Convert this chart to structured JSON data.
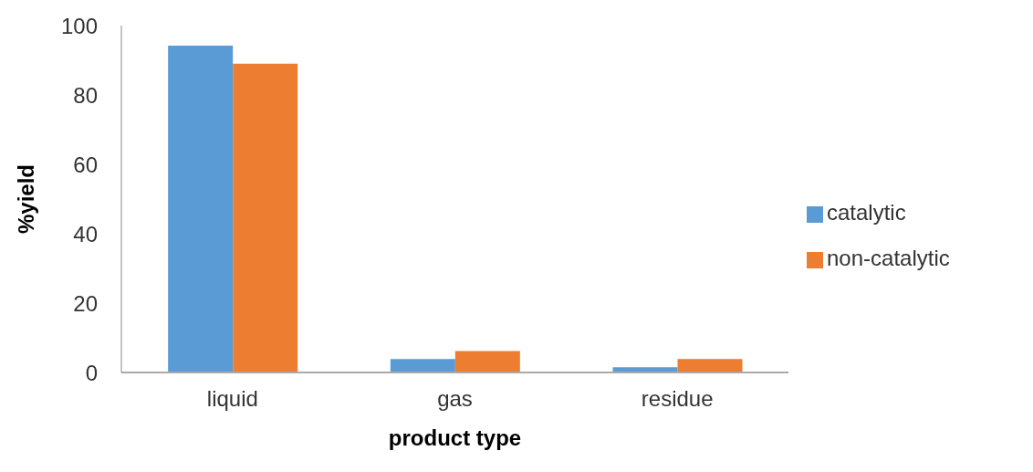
{
  "chart_data": {
    "type": "bar",
    "xlabel": "product type",
    "ylabel": "%yield",
    "categories": [
      "liquid",
      "gas",
      "residue"
    ],
    "series": [
      {
        "name": "catalytic",
        "color": "#5b9bd5",
        "values": [
          94.2,
          3.9,
          1.5
        ]
      },
      {
        "name": "non-catalytic",
        "color": "#ed7d31",
        "values": [
          89,
          6.2,
          3.9
        ]
      }
    ],
    "ylim": [
      0,
      100
    ],
    "yticks": [
      0,
      20,
      40,
      60,
      80,
      100
    ],
    "grid": false,
    "legend": "right"
  }
}
